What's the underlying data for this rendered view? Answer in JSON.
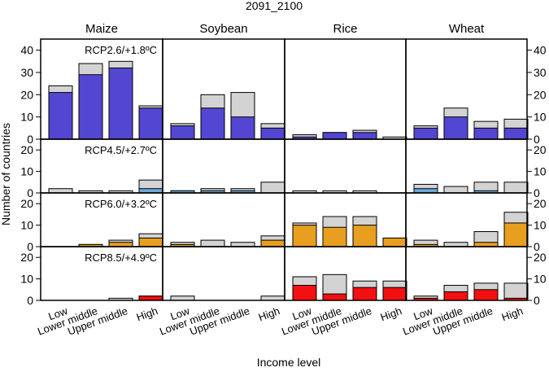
{
  "chart_data": {
    "type": "bar",
    "title": "2091_2100",
    "xlabel": "Income level",
    "ylabel": "Number of countries",
    "categories": [
      "Low",
      "Lower middle",
      "Upper middle",
      "High"
    ],
    "crops": [
      "Maize",
      "Soybean",
      "Rice",
      "Wheat"
    ],
    "series_note": "Each bar: grey = total countries, coloured = subset",
    "rows": [
      {
        "scenario": "RCP2.6/+1.8ºC",
        "color": "#5346d2",
        "ylim": [
          0,
          45
        ],
        "yticks": [
          0,
          10,
          20,
          30,
          40
        ],
        "data": {
          "Maize": {
            "grey": [
              24,
              34,
              35,
              15
            ],
            "colored": [
              21,
              29,
              32,
              14
            ]
          },
          "Soybean": {
            "grey": [
              7,
              20,
              21,
              7
            ],
            "colored": [
              6,
              14,
              10,
              5
            ]
          },
          "Rice": {
            "grey": [
              2,
              3,
              4,
              1
            ],
            "colored": [
              1,
              3,
              3,
              0
            ]
          },
          "Wheat": {
            "grey": [
              6,
              14,
              8,
              9
            ],
            "colored": [
              5,
              10,
              5,
              5
            ]
          }
        }
      },
      {
        "scenario": "RCP4.5/+2.7ºC",
        "color": "#6aa8de",
        "ylim": [
          0,
          25
        ],
        "yticks": [
          0,
          10,
          20
        ],
        "data": {
          "Maize": {
            "grey": [
              2,
              1,
              1,
              6
            ],
            "colored": [
              0,
              0,
              0,
              2
            ]
          },
          "Soybean": {
            "grey": [
              1,
              2,
              2,
              5
            ],
            "colored": [
              1,
              1,
              1,
              0
            ]
          },
          "Rice": {
            "grey": [
              1,
              1,
              1,
              0
            ],
            "colored": [
              0,
              0,
              0,
              0
            ]
          },
          "Wheat": {
            "grey": [
              4,
              3,
              5,
              5
            ],
            "colored": [
              2,
              0,
              1,
              0
            ]
          }
        }
      },
      {
        "scenario": "RCP6.0/+3.2ºC",
        "color": "#e89e1e",
        "ylim": [
          0,
          25
        ],
        "yticks": [
          0,
          10,
          20
        ],
        "data": {
          "Maize": {
            "grey": [
              0,
              1,
              3,
              6
            ],
            "colored": [
              0,
              1,
              2,
              4
            ]
          },
          "Soybean": {
            "grey": [
              2,
              3,
              2,
              5
            ],
            "colored": [
              1,
              0,
              0,
              3
            ]
          },
          "Rice": {
            "grey": [
              11,
              14,
              14,
              4
            ],
            "colored": [
              10,
              9,
              10,
              4
            ]
          },
          "Wheat": {
            "grey": [
              3,
              2,
              7,
              16
            ],
            "colored": [
              1,
              0,
              2,
              11
            ]
          }
        }
      },
      {
        "scenario": "RCP8.5/+4.9ºC",
        "color": "#f21010",
        "ylim": [
          0,
          25
        ],
        "yticks": [
          0,
          10,
          20
        ],
        "data": {
          "Maize": {
            "grey": [
              0,
              0,
              1,
              2
            ],
            "colored": [
              0,
              0,
              0,
              2
            ]
          },
          "Soybean": {
            "grey": [
              2,
              0,
              0,
              2
            ],
            "colored": [
              0,
              0,
              0,
              0
            ]
          },
          "Rice": {
            "grey": [
              11,
              12,
              9,
              9
            ],
            "colored": [
              7,
              3,
              6,
              6
            ]
          },
          "Wheat": {
            "grey": [
              2,
              7,
              8,
              8
            ],
            "colored": [
              1,
              4,
              5,
              1
            ]
          }
        }
      }
    ]
  }
}
